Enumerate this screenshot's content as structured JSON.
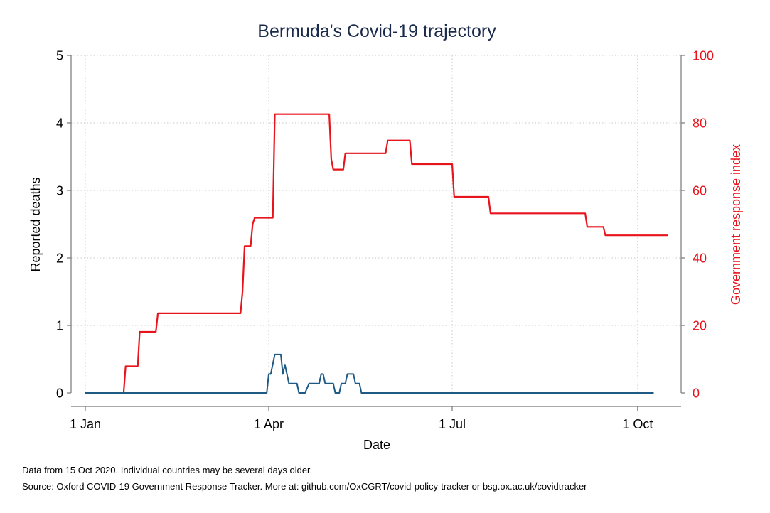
{
  "chart_data": {
    "type": "line",
    "title": "Bermuda's Covid-19 trajectory",
    "xlabel": "Date",
    "ylabel_left": "Reported deaths",
    "ylabel_right": "Government response index",
    "x_ticks": [
      {
        "day": 0,
        "label": "1 Jan"
      },
      {
        "day": 91,
        "label": "1 Apr"
      },
      {
        "day": 182,
        "label": "1 Jul"
      },
      {
        "day": 274,
        "label": "1 Oct"
      }
    ],
    "y_left_ticks": [
      0,
      1,
      2,
      3,
      4,
      5
    ],
    "y_right_ticks": [
      0,
      20,
      40,
      60,
      80,
      100
    ],
    "y_left_range": [
      0,
      5
    ],
    "y_right_range": [
      0,
      100
    ],
    "x_range_days": [
      0,
      288
    ],
    "grid": true,
    "series": [
      {
        "name": "Government response index",
        "axis": "right",
        "color": "#e8141c",
        "points": [
          [
            0,
            0
          ],
          [
            19,
            0
          ],
          [
            20,
            7.9
          ],
          [
            26,
            7.9
          ],
          [
            27,
            18.1
          ],
          [
            35,
            18.1
          ],
          [
            36,
            23.6
          ],
          [
            77,
            23.6
          ],
          [
            78,
            30
          ],
          [
            79,
            43.5
          ],
          [
            82,
            43.5
          ],
          [
            83,
            50
          ],
          [
            84,
            51.9
          ],
          [
            93,
            51.9
          ],
          [
            94,
            82.6
          ],
          [
            121,
            82.6
          ],
          [
            122,
            69.3
          ],
          [
            123,
            66.2
          ],
          [
            128,
            66.2
          ],
          [
            129,
            71
          ],
          [
            149,
            71
          ],
          [
            150,
            74.8
          ],
          [
            161,
            74.8
          ],
          [
            162,
            67.8
          ],
          [
            182,
            67.8
          ],
          [
            183,
            58.1
          ],
          [
            200,
            58.1
          ],
          [
            201,
            53.2
          ],
          [
            248,
            53.2
          ],
          [
            249,
            49.2
          ],
          [
            257,
            49.2
          ],
          [
            258,
            46.7
          ],
          [
            289,
            46.7
          ]
        ]
      },
      {
        "name": "Reported deaths",
        "axis": "left",
        "color": "#1f5a85",
        "points": [
          [
            0,
            0
          ],
          [
            90,
            0
          ],
          [
            91,
            0.28
          ],
          [
            92,
            0.28
          ],
          [
            94,
            0.57
          ],
          [
            97,
            0.57
          ],
          [
            98,
            0.28
          ],
          [
            99,
            0.42
          ],
          [
            101,
            0.14
          ],
          [
            105,
            0.14
          ],
          [
            106,
            0
          ],
          [
            109,
            0
          ],
          [
            111,
            0.14
          ],
          [
            116,
            0.14
          ],
          [
            117,
            0.28
          ],
          [
            118,
            0.28
          ],
          [
            119,
            0.14
          ],
          [
            123,
            0.14
          ],
          [
            124,
            0
          ],
          [
            126,
            0
          ],
          [
            127,
            0.14
          ],
          [
            129,
            0.14
          ],
          [
            130,
            0.28
          ],
          [
            133,
            0.28
          ],
          [
            134,
            0.14
          ],
          [
            136,
            0.14
          ],
          [
            137,
            0
          ],
          [
            282,
            0
          ]
        ]
      }
    ]
  },
  "footnotes": {
    "line1": "Data from 15 Oct 2020. Individual countries may be several days older.",
    "line2": "Source: Oxford COVID-19 Government Response Tracker. More at: github.com/OxCGRT/covid-policy-tracker or bsg.ox.ac.uk/covidtracker"
  }
}
